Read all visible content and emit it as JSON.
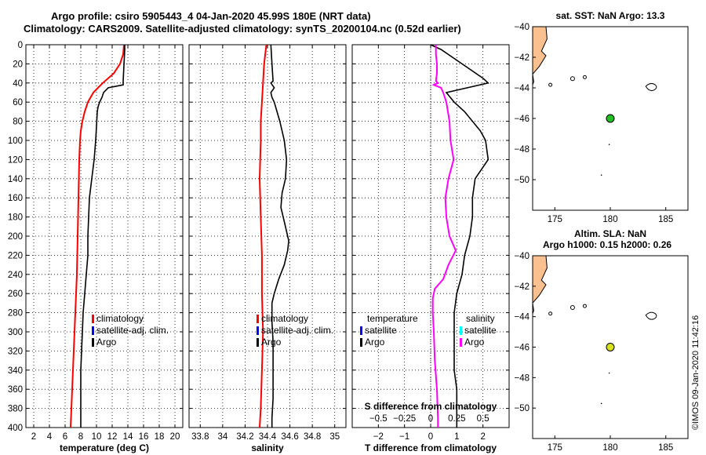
{
  "title_line1": "Argo profile: csiro 5905443_4 04-Jan-2020 45.99S 180E (NRT data)",
  "title_line2": "Climatology: CARS2009. Satellite-adjusted climatology: synTS_20200104.nc (0.52d earlier)",
  "watermark": "©IMOS 09-Jan-2020 11:42:16",
  "colors": {
    "climatology": "#ff0000",
    "satellite": "#0000ff",
    "argo": "#000000",
    "s_diff": "#ff00ff",
    "s_sat": "#00ffff",
    "land": "#fac08f",
    "float_sst": "#22c022",
    "float_sla": "#d8e020"
  },
  "chart_data": [
    {
      "type": "line",
      "name": "temperature",
      "xlabel": "temperature (deg C)",
      "xlim": [
        1,
        21
      ],
      "xticks": [
        2,
        4,
        6,
        8,
        10,
        12,
        14,
        16,
        18,
        20
      ],
      "ylim": [
        400,
        0
      ],
      "yticks": [
        0,
        20,
        40,
        60,
        80,
        100,
        120,
        140,
        160,
        180,
        200,
        220,
        240,
        260,
        280,
        300,
        320,
        340,
        360,
        380,
        400
      ],
      "legend": [
        "climatology",
        "satellite-adj. clim.",
        "Argo"
      ],
      "series": [
        {
          "name": "climatology",
          "depth": [
            0,
            10,
            20,
            30,
            40,
            50,
            60,
            70,
            80,
            90,
            100,
            120,
            160,
            200,
            240,
            280,
            320,
            360,
            400
          ],
          "values": [
            13.5,
            13.4,
            13.0,
            12.2,
            10.8,
            9.6,
            8.9,
            8.5,
            8.2,
            8.0,
            7.9,
            7.8,
            7.7,
            7.6,
            7.5,
            7.3,
            7.1,
            6.9,
            6.7
          ]
        },
        {
          "name": "Argo",
          "depth": [
            0,
            5,
            38,
            42,
            45,
            50,
            55,
            60,
            65,
            70,
            100,
            120,
            140,
            160,
            180,
            200,
            220,
            240,
            260,
            280,
            300,
            320,
            340,
            360,
            380,
            400
          ],
          "values": [
            13.6,
            13.6,
            13.4,
            13.4,
            11.5,
            10.9,
            10.7,
            10.4,
            10.2,
            10.1,
            9.9,
            9.7,
            9.4,
            9.1,
            9.0,
            8.9,
            8.9,
            8.7,
            8.5,
            8.3,
            8.2,
            8.1,
            8.0,
            8.0,
            8.0,
            8.0
          ]
        }
      ]
    },
    {
      "type": "line",
      "name": "salinity",
      "xlabel": "salinity",
      "xlim": [
        33.7,
        35.1
      ],
      "xticks": [
        33.8,
        34,
        34.2,
        34.4,
        34.6,
        34.8,
        35
      ],
      "xtick_labels": [
        "33.8",
        "34",
        "34.2",
        "34.4",
        "34.6",
        "34.8",
        "35"
      ],
      "ylim": [
        400,
        0
      ],
      "legend": [
        "climatology",
        "satellite-adj. clim.",
        "Argo"
      ],
      "series": [
        {
          "name": "climatology",
          "depth": [
            0,
            10,
            20,
            40,
            60,
            80,
            100,
            140,
            180,
            220,
            260,
            300,
            340,
            380,
            400
          ],
          "values": [
            34.39,
            34.38,
            34.37,
            34.36,
            34.35,
            34.34,
            34.34,
            34.33,
            34.34,
            34.35,
            34.35,
            34.36,
            34.35,
            34.34,
            34.33
          ]
        },
        {
          "name": "Argo",
          "depth": [
            0,
            20,
            38,
            40,
            45,
            50,
            55,
            60,
            80,
            100,
            120,
            140,
            155,
            170,
            180,
            195,
            205,
            215,
            230,
            245,
            260,
            270,
            290,
            310,
            330,
            350,
            370,
            390,
            400
          ],
          "values": [
            34.43,
            34.44,
            34.45,
            34.43,
            34.46,
            34.43,
            34.44,
            34.46,
            34.51,
            34.55,
            34.57,
            34.56,
            34.53,
            34.52,
            34.54,
            34.57,
            34.59,
            34.58,
            34.55,
            34.5,
            34.46,
            34.44,
            34.44,
            34.45,
            34.45,
            34.45,
            34.45,
            34.44,
            34.44
          ]
        }
      ]
    },
    {
      "type": "line",
      "name": "differences",
      "xlabel": "T difference from climatology",
      "xlim": [
        -3,
        3
      ],
      "xticks": [
        -2,
        -1,
        0,
        1,
        2
      ],
      "xtick_labels": [
        "−2",
        "−1",
        "0",
        "1",
        "2"
      ],
      "top_axis_label": "S difference from climatology",
      "top_ticks": [
        -0.5,
        -0.25,
        0,
        0.25,
        0.5
      ],
      "top_tick_labels": [
        "−0.5",
        "−0.25",
        "0",
        "0.25",
        "0.5"
      ],
      "ylim": [
        400,
        0
      ],
      "legend_left_title": "temperature",
      "legend_right_title": "salinity",
      "legend_left": [
        "satellite",
        "Argo"
      ],
      "legend_right": [
        "satellite",
        "Argo"
      ],
      "series": [
        {
          "name": "T diff Argo",
          "depth": [
            0,
            5,
            20,
            35,
            40,
            45,
            50,
            60,
            70,
            80,
            90,
            100,
            120,
            140,
            160,
            180,
            200,
            220,
            240,
            260,
            280,
            300,
            320,
            340,
            360,
            380,
            400
          ],
          "values": [
            0.0,
            0.4,
            1.2,
            2.0,
            2.2,
            1.4,
            0.6,
            0.9,
            1.3,
            1.6,
            1.9,
            2.1,
            2.2,
            1.7,
            1.6,
            1.6,
            1.5,
            1.3,
            1.2,
            1.0,
            0.9,
            0.9,
            0.9,
            0.9,
            1.0,
            1.0,
            1.0
          ]
        },
        {
          "name": "S diff Argo",
          "depth": [
            0,
            10,
            20,
            30,
            38,
            40,
            42,
            45,
            50,
            60,
            80,
            100,
            120,
            140,
            160,
            180,
            200,
            215,
            230,
            245,
            255,
            265,
            280,
            300,
            330,
            360,
            390,
            400
          ],
          "values": [
            0.05,
            0.05,
            0.06,
            0.06,
            0.05,
            0.07,
            0.03,
            0.1,
            0.12,
            0.15,
            0.18,
            0.19,
            0.22,
            0.17,
            0.14,
            0.15,
            0.18,
            0.24,
            0.17,
            0.12,
            0.04,
            0.02,
            0.02,
            0.03,
            0.04,
            0.06,
            0.07,
            0.07
          ]
        }
      ]
    },
    {
      "type": "map",
      "name": "sst-map",
      "title": "sat. SST: NaN Argo: 13.3",
      "xlim": [
        173,
        187
      ],
      "ylim": [
        -52,
        -40
      ],
      "xticks": [
        175,
        180,
        185
      ],
      "yticks": [
        -40,
        -42,
        -44,
        -46,
        -48,
        -50
      ],
      "ytick_labels": [
        "−40",
        "−42",
        "−44",
        "−46",
        "−48",
        "−50"
      ],
      "float": {
        "lon": 180,
        "lat": -46
      }
    },
    {
      "type": "map",
      "name": "sla-map",
      "title": "Altim. SLA: NaN",
      "subtitle": "Argo h1000: 0.15 h2000: 0.26",
      "xlim": [
        173,
        187
      ],
      "ylim": [
        -52,
        -40
      ],
      "xticks": [
        175,
        180,
        185
      ],
      "yticks": [
        -40,
        -42,
        -44,
        -46,
        -48,
        -50
      ],
      "ytick_labels": [
        "−40",
        "−42",
        "−44",
        "−46",
        "−48",
        "−50"
      ],
      "float": {
        "lon": 180,
        "lat": -46
      }
    }
  ]
}
